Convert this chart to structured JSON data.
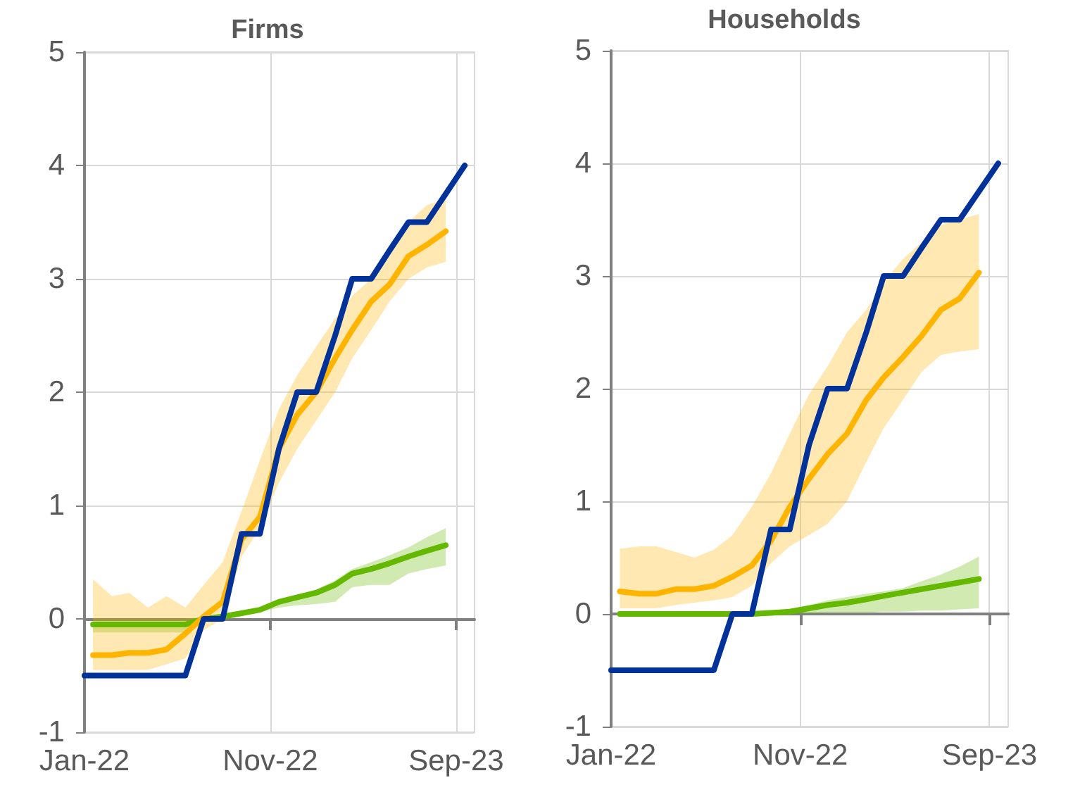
{
  "chart_data": [
    {
      "type": "line",
      "title": "Firms",
      "marker": "none",
      "line_style": "solid",
      "grid": true,
      "xlim": [
        "2022-01-01",
        "2023-10-01"
      ],
      "ylim": [
        -1,
        5
      ],
      "yticks": [
        -1,
        0,
        1,
        2,
        3,
        4,
        5
      ],
      "xticks": [
        {
          "value": "2022-01-01",
          "label": "Jan-22"
        },
        {
          "value": "2022-11-01",
          "label": "Nov-22"
        },
        {
          "value": "2023-09-01",
          "label": "Sep-23"
        }
      ],
      "series": [
        {
          "color": "#65b800",
          "x": [
            "2022-01-15",
            "2022-02-15",
            "2022-03-15",
            "2022-04-15",
            "2022-05-15",
            "2022-06-15",
            "2022-07-15",
            "2022-08-15",
            "2022-09-15",
            "2022-10-15",
            "2022-11-15",
            "2022-12-15",
            "2023-01-15",
            "2023-02-15",
            "2023-03-15",
            "2023-04-15",
            "2023-05-15",
            "2023-06-15",
            "2023-07-15",
            "2023-08-15"
          ],
          "values": [
            -0.05,
            -0.05,
            -0.05,
            -0.05,
            -0.05,
            -0.05,
            0.0,
            0.02,
            0.05,
            0.08,
            0.15,
            0.19,
            0.23,
            0.3,
            0.4,
            0.44,
            0.49,
            0.55,
            0.6,
            0.65
          ],
          "lower": [
            -0.12,
            -0.12,
            -0.12,
            -0.12,
            -0.12,
            -0.12,
            -0.02,
            0.0,
            0.03,
            0.06,
            0.1,
            0.12,
            0.13,
            0.15,
            0.28,
            0.3,
            0.3,
            0.4,
            0.44,
            0.47
          ],
          "upper": [
            0.0,
            0.0,
            0.0,
            0.0,
            0.0,
            0.0,
            0.02,
            0.04,
            0.07,
            0.1,
            0.17,
            0.21,
            0.26,
            0.34,
            0.44,
            0.5,
            0.56,
            0.63,
            0.72,
            0.8
          ]
        },
        {
          "color": "#ffb400",
          "x": [
            "2022-01-15",
            "2022-02-15",
            "2022-03-15",
            "2022-04-15",
            "2022-05-15",
            "2022-06-15",
            "2022-07-15",
            "2022-08-15",
            "2022-09-15",
            "2022-10-15",
            "2022-11-15",
            "2022-12-15",
            "2023-01-15",
            "2023-02-15",
            "2023-03-15",
            "2023-04-15",
            "2023-05-15",
            "2023-06-15",
            "2023-07-15",
            "2023-08-15"
          ],
          "values": [
            -0.32,
            -0.32,
            -0.3,
            -0.3,
            -0.27,
            -0.13,
            0.02,
            0.15,
            0.7,
            0.9,
            1.5,
            1.8,
            2.0,
            2.3,
            2.55,
            2.8,
            2.95,
            3.2,
            3.3,
            3.42
          ],
          "lower": [
            -0.45,
            -0.45,
            -0.45,
            -0.45,
            -0.4,
            -0.35,
            -0.1,
            0.0,
            0.55,
            0.8,
            1.2,
            1.5,
            1.75,
            2.0,
            2.3,
            2.55,
            2.8,
            3.0,
            3.1,
            3.15
          ],
          "upper": [
            0.35,
            0.2,
            0.23,
            0.1,
            0.2,
            0.1,
            0.3,
            0.5,
            0.95,
            1.4,
            1.85,
            2.15,
            2.4,
            2.65,
            2.85,
            3.0,
            3.2,
            3.5,
            3.65,
            3.7
          ]
        },
        {
          "color": "#003299",
          "x": [
            "2022-01-01",
            "2022-01-15",
            "2022-02-15",
            "2022-03-15",
            "2022-04-15",
            "2022-05-15",
            "2022-06-15",
            "2022-07-15",
            "2022-08-15",
            "2022-09-15",
            "2022-10-15",
            "2022-11-15",
            "2022-12-15",
            "2023-01-15",
            "2023-02-15",
            "2023-03-15",
            "2023-04-15",
            "2023-05-15",
            "2023-06-15",
            "2023-07-15",
            "2023-08-15",
            "2023-09-15"
          ],
          "values": [
            -0.5,
            -0.5,
            -0.5,
            -0.5,
            -0.5,
            -0.5,
            -0.5,
            0,
            0,
            0.75,
            0.75,
            1.5,
            2,
            2,
            2.5,
            3,
            3,
            3.25,
            3.5,
            3.5,
            3.75,
            4
          ]
        }
      ]
    },
    {
      "type": "line",
      "title": "Households",
      "marker": "none",
      "line_style": "solid",
      "grid": true,
      "xlim": [
        "2022-01-01",
        "2023-10-01"
      ],
      "ylim": [
        -1,
        5
      ],
      "yticks": [
        -1,
        0,
        1,
        2,
        3,
        4,
        5
      ],
      "xticks": [
        {
          "value": "2022-01-01",
          "label": "Jan-22"
        },
        {
          "value": "2022-11-01",
          "label": "Nov-22"
        },
        {
          "value": "2023-09-01",
          "label": "Sep-23"
        }
      ],
      "series": [
        {
          "color": "#65b800",
          "x": [
            "2022-01-15",
            "2022-02-15",
            "2022-03-15",
            "2022-04-15",
            "2022-05-15",
            "2022-06-15",
            "2022-07-15",
            "2022-08-15",
            "2022-09-15",
            "2022-10-15",
            "2022-11-15",
            "2022-12-15",
            "2023-01-15",
            "2023-02-15",
            "2023-03-15",
            "2023-04-15",
            "2023-05-15",
            "2023-06-15",
            "2023-07-15",
            "2023-08-15"
          ],
          "values": [
            0.0,
            0.0,
            0.0,
            0.0,
            0.0,
            0.0,
            0.0,
            0.0,
            0.01,
            0.02,
            0.05,
            0.08,
            0.1,
            0.13,
            0.16,
            0.19,
            0.22,
            0.25,
            0.28,
            0.31
          ],
          "lower": [
            0.0,
            0.0,
            0.0,
            0.0,
            0.0,
            0.0,
            0.0,
            0.0,
            0.0,
            0.0,
            0.0,
            0.01,
            0.01,
            0.01,
            0.02,
            0.02,
            0.03,
            0.03,
            0.04,
            0.05
          ],
          "upper": [
            0.0,
            0.0,
            0.0,
            0.0,
            0.0,
            0.0,
            0.0,
            0.0,
            0.0,
            0.04,
            0.08,
            0.12,
            0.15,
            0.18,
            0.2,
            0.23,
            0.29,
            0.35,
            0.42,
            0.51
          ]
        },
        {
          "color": "#ffb400",
          "x": [
            "2022-01-15",
            "2022-02-15",
            "2022-03-15",
            "2022-04-15",
            "2022-05-15",
            "2022-06-15",
            "2022-07-15",
            "2022-08-15",
            "2022-09-15",
            "2022-10-15",
            "2022-11-15",
            "2022-12-15",
            "2023-01-15",
            "2023-02-15",
            "2023-03-15",
            "2023-04-15",
            "2023-05-15",
            "2023-06-15",
            "2023-07-15",
            "2023-08-15"
          ],
          "values": [
            0.2,
            0.18,
            0.18,
            0.22,
            0.22,
            0.25,
            0.33,
            0.43,
            0.65,
            0.95,
            1.2,
            1.42,
            1.6,
            1.9,
            2.1,
            2.28,
            2.47,
            2.7,
            2.8,
            3.03
          ],
          "lower": [
            0.05,
            0.05,
            0.05,
            0.08,
            0.1,
            0.12,
            0.15,
            0.25,
            0.45,
            0.6,
            0.7,
            0.8,
            1.0,
            1.35,
            1.65,
            1.9,
            2.15,
            2.3,
            2.33,
            2.35
          ],
          "upper": [
            0.58,
            0.6,
            0.6,
            0.55,
            0.5,
            0.57,
            0.7,
            0.95,
            1.25,
            1.6,
            1.95,
            2.2,
            2.5,
            2.7,
            2.95,
            3.15,
            3.3,
            3.45,
            3.5,
            3.55
          ]
        },
        {
          "color": "#003299",
          "x": [
            "2022-01-01",
            "2022-01-15",
            "2022-02-15",
            "2022-03-15",
            "2022-04-15",
            "2022-05-15",
            "2022-06-15",
            "2022-07-15",
            "2022-08-15",
            "2022-09-15",
            "2022-10-15",
            "2022-11-15",
            "2022-12-15",
            "2023-01-15",
            "2023-02-15",
            "2023-03-15",
            "2023-04-15",
            "2023-05-15",
            "2023-06-15",
            "2023-07-15",
            "2023-08-15",
            "2023-09-15"
          ],
          "values": [
            -0.5,
            -0.5,
            -0.5,
            -0.5,
            -0.5,
            -0.5,
            -0.5,
            0,
            0,
            0.75,
            0.75,
            1.5,
            2,
            2,
            2.5,
            3,
            3,
            3.25,
            3.5,
            3.5,
            3.75,
            4
          ]
        }
      ]
    }
  ]
}
